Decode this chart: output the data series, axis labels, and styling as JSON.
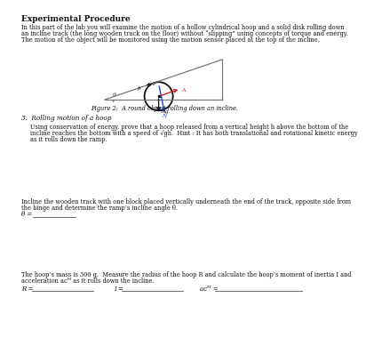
{
  "title": "Experimental Procedure",
  "intro_line1": "In this part of the lab you will examine the motion of a hollow cylindrical hoop and a solid disk rolling down",
  "intro_line2": "an incline track (the long wooden track on the floor) without “slipping” using concepts of torque and energy.",
  "intro_line3": "The motion of the object will be monitored using the motion sensor placed at the top of the incline.",
  "figure_caption": "Figure 2:  A round object rolling down an incline.",
  "section_label": "3.  Rolling motion of a hoop",
  "section_line1": "Using conservation of energy, prove that a hoop released from a vertical height h above the bottom of the",
  "section_line2": "incline reaches the bottom with a speed of √gh.  Hint : It has both translational and rotational kinetic energy",
  "section_line3": "as it rolls down the ramp.",
  "incline_line1": "Incline the wooden track with one block placed vertically underneath the end of the track, opposite side from",
  "incline_line2": "the hinge and determine the ramp’s incline angle θ.",
  "theta_label": "θ =",
  "hoop_line1": "The hoop’s mass is 300 g.  Measure the radius of the hoop R and calculate the hoop’s moment of inertia I and",
  "hoop_line2": "acceleration aᴄᴹ as it rolls down the incline.",
  "R_label": "R =",
  "I_label": "I =",
  "acm_label": "aᴄᴹ =",
  "bg_color": "#ffffff",
  "diagram_bg": "#f8f8f8"
}
